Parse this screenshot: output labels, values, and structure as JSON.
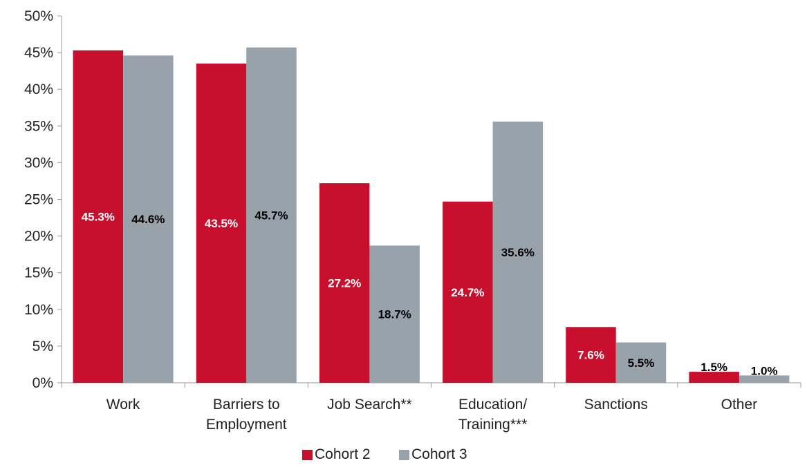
{
  "chart_data": {
    "type": "bar",
    "categories": [
      [
        "Work"
      ],
      [
        "Barriers to",
        "Employment"
      ],
      [
        "Job Search**"
      ],
      [
        "Education/",
        "Training***"
      ],
      [
        "Sanctions"
      ],
      [
        "Other"
      ]
    ],
    "series": [
      {
        "name": "Cohort 2",
        "color": "#c8102e",
        "label_color": "#ffffff",
        "values": [
          45.3,
          43.5,
          27.2,
          24.7,
          7.6,
          1.5
        ],
        "labels": [
          "45.3%",
          "43.5%",
          "27.2%",
          "24.7%",
          "7.6%",
          "1.5%"
        ]
      },
      {
        "name": "Cohort 3",
        "color": "#98a2aa",
        "label_color": "#000000",
        "values": [
          44.6,
          45.7,
          18.7,
          35.6,
          5.5,
          1.0
        ],
        "labels": [
          "44.6%",
          "45.7%",
          "18.7%",
          "35.6%",
          "5.5%",
          "1.0%"
        ]
      }
    ],
    "ylim": [
      0,
      50
    ],
    "yticks": [
      0,
      5,
      10,
      15,
      20,
      25,
      30,
      35,
      40,
      45,
      50
    ],
    "ytick_labels": [
      "0%",
      "5%",
      "10%",
      "15%",
      "20%",
      "25%",
      "30%",
      "35%",
      "40%",
      "45%",
      "50%"
    ],
    "grid": false,
    "legend_position": "bottom-center",
    "title": "",
    "xlabel": "",
    "ylabel": ""
  }
}
